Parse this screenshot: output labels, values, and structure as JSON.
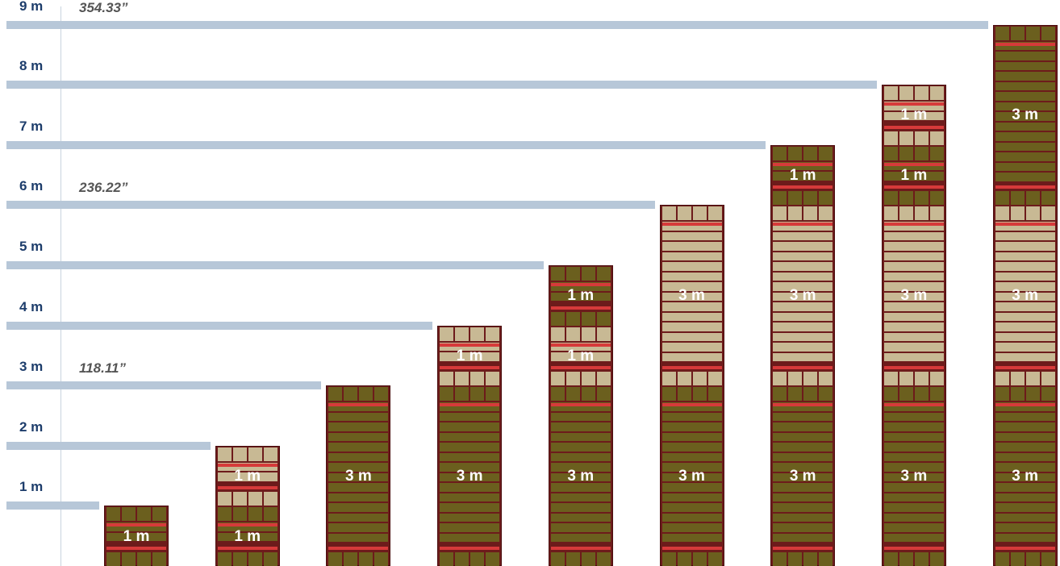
{
  "scale_labels": [
    "1 m",
    "2 m",
    "3 m",
    "4 m",
    "5 m",
    "6 m",
    "7 m",
    "8 m",
    "9 m"
  ],
  "inch_labels": {
    "3": "118.11”",
    "6": "236.22”",
    "9": "354.33”"
  },
  "colors": {
    "bar": "#b7c7d8",
    "scale_text": "#1d3d6b",
    "inch_text": "#555555",
    "frame": "#6d1b1b",
    "dark_panel": "#6b5f1e",
    "light_panel": "#c8b994",
    "beam": "#d63a3a",
    "label": "#ffffff"
  },
  "columns": [
    {
      "height_m": 1,
      "segments": [
        {
          "size_m": 1,
          "label": "1 m",
          "style": "dark"
        }
      ]
    },
    {
      "height_m": 2,
      "segments": [
        {
          "size_m": 1,
          "label": "1 m",
          "style": "dark"
        },
        {
          "size_m": 1,
          "label": "1 m",
          "style": "light"
        }
      ]
    },
    {
      "height_m": 3,
      "segments": [
        {
          "size_m": 3,
          "label": "3 m",
          "style": "dark"
        }
      ]
    },
    {
      "height_m": 4,
      "segments": [
        {
          "size_m": 3,
          "label": "3 m",
          "style": "dark"
        },
        {
          "size_m": 1,
          "label": "1 m",
          "style": "light"
        }
      ]
    },
    {
      "height_m": 5,
      "segments": [
        {
          "size_m": 3,
          "label": "3 m",
          "style": "dark"
        },
        {
          "size_m": 1,
          "label": "1 m",
          "style": "light"
        },
        {
          "size_m": 1,
          "label": "1 m",
          "style": "dark"
        }
      ]
    },
    {
      "height_m": 6,
      "segments": [
        {
          "size_m": 3,
          "label": "3 m",
          "style": "dark"
        },
        {
          "size_m": 3,
          "label": "3 m",
          "style": "light"
        }
      ]
    },
    {
      "height_m": 7,
      "segments": [
        {
          "size_m": 3,
          "label": "3 m",
          "style": "dark"
        },
        {
          "size_m": 3,
          "label": "3 m",
          "style": "light"
        },
        {
          "size_m": 1,
          "label": "1 m",
          "style": "dark"
        }
      ]
    },
    {
      "height_m": 8,
      "segments": [
        {
          "size_m": 3,
          "label": "3 m",
          "style": "dark"
        },
        {
          "size_m": 3,
          "label": "3 m",
          "style": "light"
        },
        {
          "size_m": 1,
          "label": "1 m",
          "style": "dark"
        },
        {
          "size_m": 1,
          "label": "1 m",
          "style": "light"
        }
      ]
    },
    {
      "height_m": 9,
      "segments": [
        {
          "size_m": 3,
          "label": "3 m",
          "style": "dark"
        },
        {
          "size_m": 3,
          "label": "3 m",
          "style": "light"
        },
        {
          "size_m": 3,
          "label": "3 m",
          "style": "dark"
        }
      ]
    }
  ]
}
